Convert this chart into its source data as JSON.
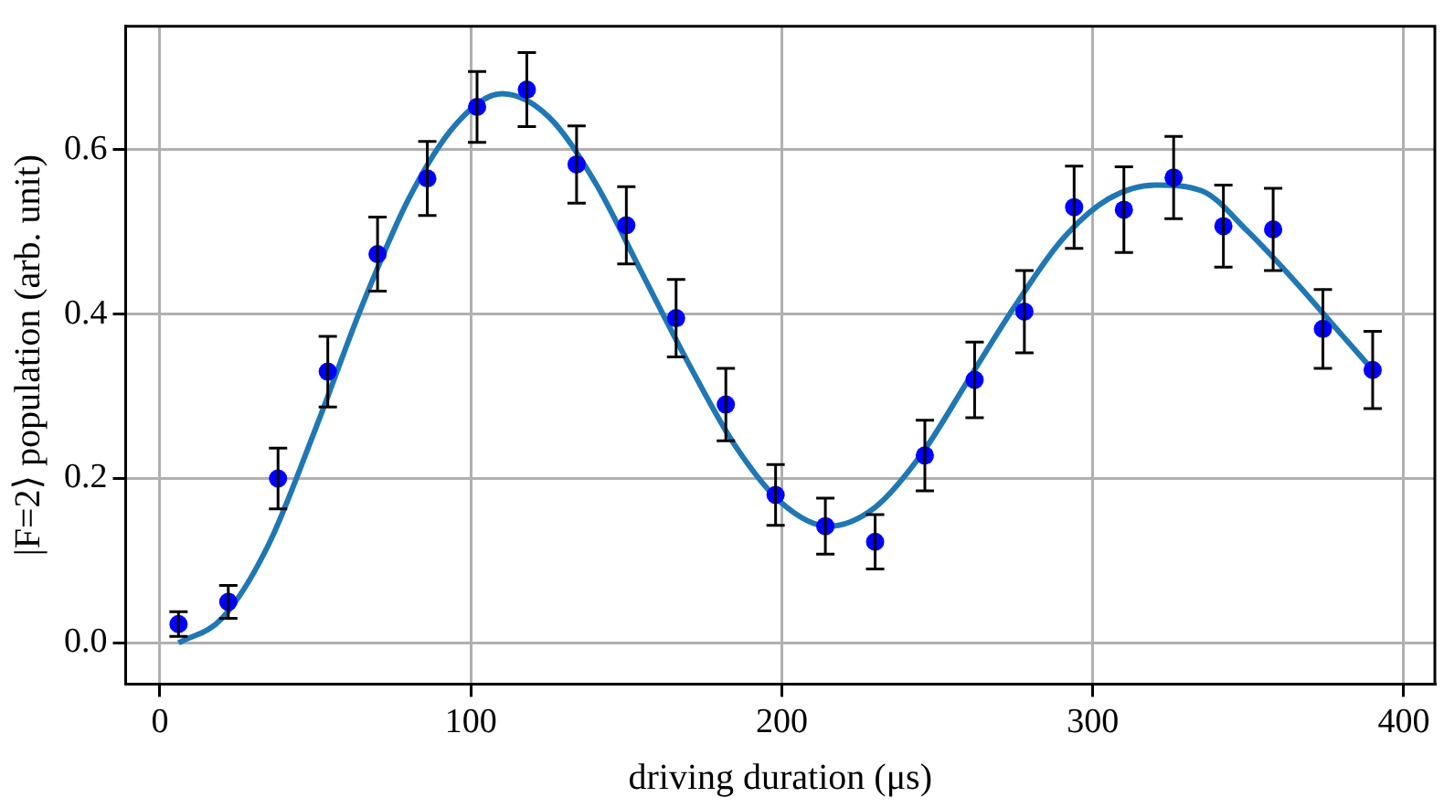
{
  "chart_data": {
    "type": "scatter",
    "xlabel": "driving duration (μs)",
    "ylabel": "|F=2⟩ population (arb. unit)",
    "xlim": [
      -11,
      410
    ],
    "ylim": [
      -0.05,
      0.75
    ],
    "xticks": [
      0,
      100,
      200,
      300,
      400
    ],
    "yticks": [
      {
        "value": 0,
        "label": "0.0"
      },
      {
        "value": 0.2,
        "label": "0.2"
      },
      {
        "value": 0.4,
        "label": "0.4"
      },
      {
        "value": 0.6,
        "label": "0.6"
      }
    ],
    "grid": true,
    "legend": false,
    "marker": "circle",
    "series": [
      {
        "type": "line",
        "color": "#1f77b4",
        "marker": "none",
        "x": [
          6,
          20,
          35,
          50,
          65,
          80,
          95,
          110,
          125,
          140,
          155,
          170,
          185,
          200,
          215,
          230,
          245,
          260,
          275,
          290,
          305,
          320,
          335,
          350,
          365,
          380,
          390
        ],
        "values": [
          0.0,
          0.03,
          0.12,
          0.26,
          0.41,
          0.54,
          0.63,
          0.668,
          0.64,
          0.56,
          0.45,
          0.34,
          0.24,
          0.17,
          0.142,
          0.165,
          0.23,
          0.32,
          0.41,
          0.49,
          0.54,
          0.557,
          0.55,
          0.5,
          0.44,
          0.375,
          0.332
        ]
      },
      {
        "color": "#0000ff",
        "x": [
          6,
          22,
          38,
          54,
          70,
          86,
          102,
          118,
          134,
          150,
          166,
          182,
          198,
          214,
          230,
          246,
          262,
          278,
          294,
          310,
          326,
          342,
          358,
          374,
          390
        ],
        "values": [
          0.023,
          0.05,
          0.2,
          0.33,
          0.473,
          0.565,
          0.652,
          0.673,
          0.582,
          0.508,
          0.395,
          0.29,
          0.18,
          0.142,
          0.123,
          0.228,
          0.32,
          0.403,
          0.53,
          0.527,
          0.566,
          0.507,
          0.503,
          0.382,
          0.332
        ],
        "errors": [
          0.015,
          0.02,
          0.037,
          0.043,
          0.045,
          0.045,
          0.043,
          0.045,
          0.047,
          0.047,
          0.047,
          0.044,
          0.037,
          0.034,
          0.033,
          0.043,
          0.046,
          0.05,
          0.05,
          0.052,
          0.05,
          0.05,
          0.05,
          0.048,
          0.047
        ]
      }
    ]
  }
}
